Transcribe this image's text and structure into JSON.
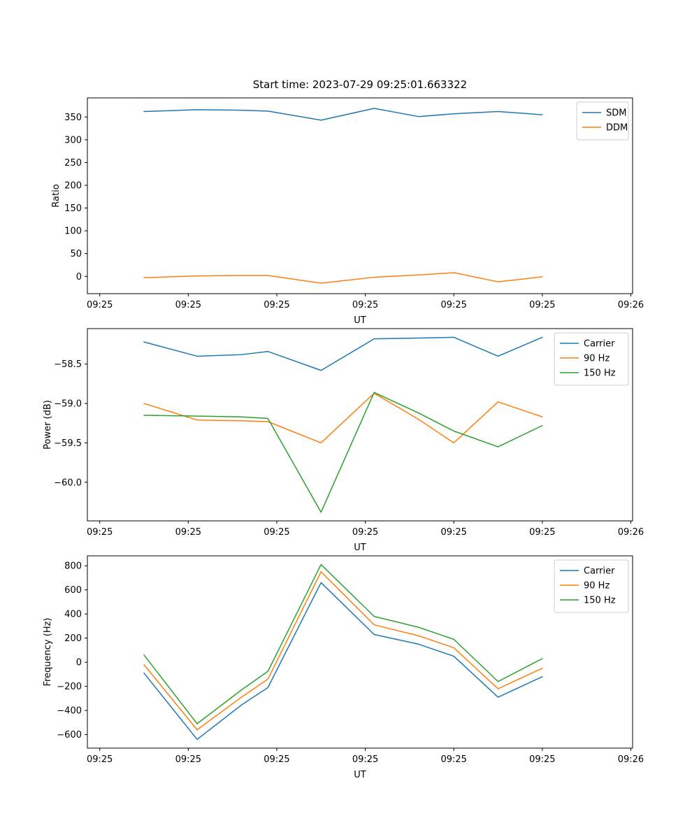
{
  "figure": {
    "title": "Start time: 2023-07-29 09:25:01.663322",
    "background": "#ffffff"
  },
  "colors": {
    "blue": "#1f77b4",
    "orange": "#ff7f0e",
    "green": "#2ca02c",
    "axis": "#000000",
    "legend_border": "#cccccc"
  },
  "chart_data": [
    {
      "type": "line",
      "xlabel": "UT",
      "ylabel": "Ratio",
      "xlim": [
        -1.4,
        60.2
      ],
      "ylim": [
        -38,
        392
      ],
      "grid": false,
      "legend": {
        "position": "upper right"
      },
      "xticks": {
        "positions": [
          0,
          10,
          20,
          30,
          40,
          50,
          60
        ],
        "labels": [
          "09:25",
          "09:25",
          "09:25",
          "09:25",
          "09:25",
          "09:25",
          "09:26"
        ]
      },
      "yticks": {
        "positions": [
          0,
          50,
          100,
          150,
          200,
          250,
          300,
          350
        ],
        "labels": [
          "0",
          "50",
          "100",
          "150",
          "200",
          "250",
          "300",
          "350"
        ]
      },
      "x": [
        5,
        11,
        16,
        19,
        25,
        31,
        36,
        40,
        45,
        50
      ],
      "series": [
        {
          "name": "SDM",
          "color": "#1f77b4",
          "values": [
            362,
            366,
            365,
            363,
            343,
            369,
            351,
            357,
            362,
            355
          ]
        },
        {
          "name": "DDM",
          "color": "#ff7f0e",
          "values": [
            -3,
            1,
            2,
            2,
            -15,
            -2,
            3,
            8,
            -12,
            -1
          ]
        }
      ]
    },
    {
      "type": "line",
      "xlabel": "UT",
      "ylabel": "Power (dB)",
      "xlim": [
        -1.4,
        60.2
      ],
      "ylim": [
        -60.49,
        -58.05
      ],
      "grid": false,
      "legend": {
        "position": "upper right"
      },
      "xticks": {
        "positions": [
          0,
          10,
          20,
          30,
          40,
          50,
          60
        ],
        "labels": [
          "09:25",
          "09:25",
          "09:25",
          "09:25",
          "09:25",
          "09:25",
          "09:26"
        ]
      },
      "yticks": {
        "positions": [
          -60.0,
          -59.5,
          -59.0,
          -58.5
        ],
        "labels": [
          "−60.0",
          "−59.5",
          "−59.0",
          "−58.5"
        ]
      },
      "x": [
        5,
        11,
        16,
        19,
        25,
        31,
        36,
        40,
        45,
        50
      ],
      "series": [
        {
          "name": "Carrier",
          "color": "#1f77b4",
          "values": [
            -58.22,
            -58.4,
            -58.38,
            -58.34,
            -58.58,
            -58.18,
            -58.17,
            -58.16,
            -58.4,
            -58.16
          ]
        },
        {
          "name": "90 Hz",
          "color": "#ff7f0e",
          "values": [
            -59.0,
            -59.21,
            -59.22,
            -59.23,
            -59.5,
            -58.87,
            -59.2,
            -59.5,
            -58.98,
            -59.17
          ]
        },
        {
          "name": "150 Hz",
          "color": "#2ca02c",
          "values": [
            -59.15,
            -59.16,
            -59.17,
            -59.19,
            -60.38,
            -58.86,
            -59.12,
            -59.35,
            -59.55,
            -59.28
          ]
        }
      ]
    },
    {
      "type": "line",
      "xlabel": "UT",
      "ylabel": "Frequency (Hz)",
      "xlim": [
        -1.4,
        60.2
      ],
      "ylim": [
        -712,
        882
      ],
      "grid": false,
      "legend": {
        "position": "upper right"
      },
      "xticks": {
        "positions": [
          0,
          10,
          20,
          30,
          40,
          50,
          60
        ],
        "labels": [
          "09:25",
          "09:25",
          "09:25",
          "09:25",
          "09:25",
          "09:25",
          "09:26"
        ]
      },
      "yticks": {
        "positions": [
          -600,
          -400,
          -200,
          0,
          200,
          400,
          600,
          800
        ],
        "labels": [
          "−600",
          "−400",
          "−200",
          "0",
          "200",
          "400",
          "600",
          "800"
        ]
      },
      "x": [
        5,
        11,
        16,
        19,
        25,
        31,
        36,
        40,
        45,
        50
      ],
      "series": [
        {
          "name": "Carrier",
          "color": "#1f77b4",
          "values": [
            -90,
            -640,
            -355,
            -210,
            660,
            230,
            150,
            50,
            -290,
            -120
          ]
        },
        {
          "name": "90 Hz",
          "color": "#ff7f0e",
          "values": [
            -20,
            -560,
            -290,
            -140,
            750,
            310,
            220,
            120,
            -220,
            -50
          ]
        },
        {
          "name": "150 Hz",
          "color": "#2ca02c",
          "values": [
            60,
            -510,
            -230,
            -75,
            810,
            380,
            290,
            190,
            -160,
            30
          ]
        }
      ]
    }
  ]
}
